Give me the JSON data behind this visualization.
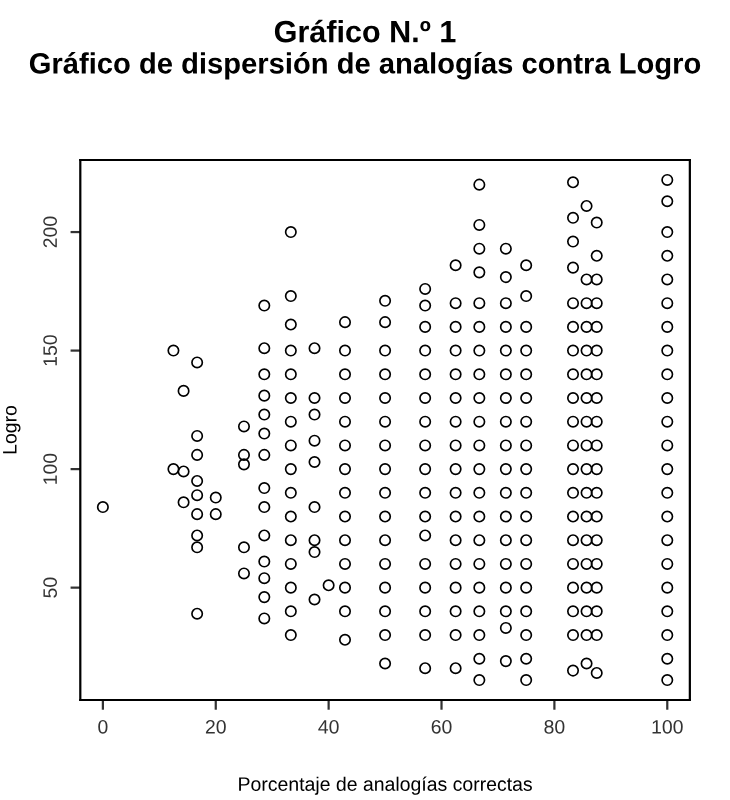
{
  "chart_data": {
    "type": "scatter",
    "title": "Gráfico N.º 1",
    "subtitle": "Gráfico de dispersión de analogías contra Logro",
    "xlabel": "Porcentaje de analogías correctas",
    "ylabel": "Logro",
    "xlim": [
      -4,
      104
    ],
    "ylim": [
      2.6,
      230.4
    ],
    "xticks": [
      0,
      20,
      40,
      60,
      80,
      100
    ],
    "yticks": [
      50,
      100,
      150,
      200
    ],
    "grid": false,
    "legend": false,
    "marker": "circle",
    "series": [
      {
        "color": "#000000",
        "x": [
          0,
          12.5,
          12.5,
          14.3,
          14.3,
          14.3,
          16.7,
          16.7,
          16.7,
          16.7,
          16.7,
          16.7,
          16.7,
          16.7,
          16.7,
          20,
          20,
          25,
          25,
          25,
          25,
          25,
          28.6,
          28.6,
          28.6,
          28.6,
          28.6,
          28.6,
          28.6,
          28.6,
          28.6,
          28.6,
          28.6,
          28.6,
          28.6,
          28.6,
          33.3,
          33.3,
          33.3,
          33.3,
          33.3,
          33.3,
          33.3,
          33.3,
          33.3,
          33.3,
          33.3,
          33.3,
          33.3,
          33.3,
          33.3,
          33.3,
          37.5,
          37.5,
          37.5,
          37.5,
          37.5,
          37.5,
          37.5,
          37.5,
          37.5,
          40,
          42.9,
          42.9,
          42.9,
          42.9,
          42.9,
          42.9,
          42.9,
          42.9,
          42.9,
          42.9,
          42.9,
          42.9,
          42.9,
          42.9,
          50,
          50,
          50,
          50,
          50,
          50,
          50,
          50,
          50,
          50,
          50,
          50,
          50,
          50,
          50,
          50,
          57.1,
          57.1,
          57.1,
          57.1,
          57.1,
          57.1,
          57.1,
          57.1,
          57.1,
          57.1,
          57.1,
          57.1,
          57.1,
          57.1,
          57.1,
          57.1,
          57.1,
          62.5,
          62.5,
          62.5,
          62.5,
          62.5,
          62.5,
          62.5,
          62.5,
          62.5,
          62.5,
          62.5,
          62.5,
          62.5,
          62.5,
          62.5,
          62.5,
          62.5,
          66.7,
          66.7,
          66.7,
          66.7,
          66.7,
          66.7,
          66.7,
          66.7,
          66.7,
          66.7,
          66.7,
          66.7,
          66.7,
          66.7,
          66.7,
          66.7,
          66.7,
          66.7,
          66.7,
          66.7,
          66.7,
          71.4,
          71.4,
          71.4,
          71.4,
          71.4,
          71.4,
          71.4,
          71.4,
          71.4,
          71.4,
          71.4,
          71.4,
          71.4,
          71.4,
          71.4,
          71.4,
          71.4,
          71.4,
          75,
          75,
          75,
          75,
          75,
          75,
          75,
          75,
          75,
          75,
          75,
          75,
          75,
          75,
          75,
          75,
          75,
          75,
          83.3,
          83.3,
          83.3,
          83.3,
          83.3,
          83.3,
          83.3,
          83.3,
          83.3,
          83.3,
          83.3,
          83.3,
          83.3,
          83.3,
          83.3,
          83.3,
          83.3,
          83.3,
          83.3,
          83.3,
          85.7,
          85.7,
          85.7,
          85.7,
          85.7,
          85.7,
          85.7,
          85.7,
          85.7,
          85.7,
          85.7,
          85.7,
          85.7,
          85.7,
          85.7,
          85.7,
          85.7,
          85.7,
          87.5,
          87.5,
          87.5,
          87.5,
          87.5,
          87.5,
          87.5,
          87.5,
          87.5,
          87.5,
          87.5,
          87.5,
          87.5,
          87.5,
          87.5,
          87.5,
          87.5,
          87.5,
          87.5,
          100,
          100,
          100,
          100,
          100,
          100,
          100,
          100,
          100,
          100,
          100,
          100,
          100,
          100,
          100,
          100,
          100,
          100,
          100,
          100,
          100,
          100
        ],
        "values": [
          84,
          150,
          100,
          133,
          99,
          86,
          145,
          114,
          106,
          95,
          89,
          81,
          72,
          67,
          39,
          88,
          81,
          118,
          106,
          102,
          67,
          56,
          169,
          151,
          140,
          131,
          123,
          115,
          106,
          92,
          84,
          72,
          61,
          54,
          46,
          37,
          200,
          173,
          161,
          150,
          140,
          130,
          120,
          110,
          100,
          90,
          80,
          70,
          60,
          50,
          40,
          30,
          151,
          130,
          123,
          112,
          103,
          84,
          70,
          65,
          45,
          51,
          162,
          150,
          140,
          130,
          120,
          110,
          100,
          90,
          80,
          70,
          60,
          50,
          40,
          28,
          171,
          162,
          150,
          140,
          130,
          120,
          110,
          100,
          90,
          80,
          70,
          60,
          50,
          40,
          30,
          18,
          176,
          169,
          160,
          150,
          140,
          130,
          120,
          110,
          100,
          90,
          80,
          72,
          60,
          50,
          40,
          30,
          16,
          186,
          170,
          160,
          150,
          140,
          130,
          120,
          110,
          100,
          90,
          80,
          70,
          60,
          50,
          40,
          30,
          16,
          220,
          203,
          193,
          183,
          170,
          160,
          150,
          140,
          130,
          120,
          110,
          100,
          90,
          80,
          70,
          60,
          50,
          40,
          30,
          20,
          11,
          193,
          181,
          170,
          160,
          150,
          140,
          130,
          120,
          110,
          100,
          90,
          80,
          70,
          60,
          50,
          40,
          33,
          19,
          186,
          173,
          160,
          150,
          140,
          130,
          120,
          110,
          100,
          90,
          80,
          70,
          60,
          50,
          40,
          30,
          20,
          11,
          221,
          206,
          196,
          185,
          170,
          160,
          150,
          140,
          130,
          120,
          110,
          100,
          90,
          80,
          70,
          60,
          50,
          40,
          30,
          15,
          211,
          180,
          170,
          160,
          150,
          140,
          130,
          120,
          110,
          100,
          90,
          80,
          70,
          60,
          50,
          40,
          30,
          18,
          204,
          190,
          180,
          170,
          160,
          150,
          140,
          130,
          120,
          110,
          100,
          90,
          80,
          70,
          60,
          50,
          40,
          30,
          14,
          222,
          213,
          200,
          190,
          180,
          170,
          160,
          150,
          140,
          130,
          120,
          110,
          100,
          90,
          80,
          70,
          60,
          50,
          40,
          30,
          20,
          11
        ]
      }
    ]
  }
}
